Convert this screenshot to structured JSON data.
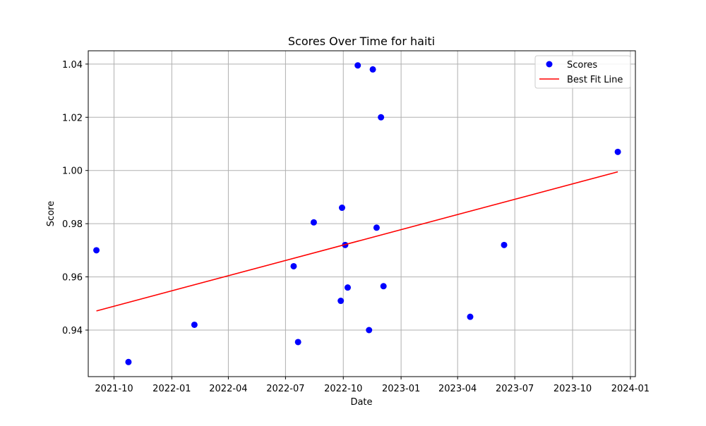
{
  "chart_data": {
    "type": "scatter",
    "title": "Scores Over Time for haiti",
    "xlabel": "Date",
    "ylabel": "Score",
    "xlim": [
      "2021-08-21",
      "2024-01-09"
    ],
    "ylim": [
      0.9225,
      1.045
    ],
    "grid": true,
    "legend_position": "top-right",
    "x_ticks": [
      "2021-10-01",
      "2022-01-01",
      "2022-04-01",
      "2022-07-01",
      "2022-10-01",
      "2023-01-01",
      "2023-04-01",
      "2023-07-01",
      "2023-10-01",
      "2024-01-01"
    ],
    "x_tick_labels": [
      "2021-10",
      "2022-01",
      "2022-04",
      "2022-07",
      "2022-10",
      "2023-01",
      "2023-04",
      "2023-07",
      "2023-10",
      "2024-01"
    ],
    "y_ticks": [
      0.94,
      0.96,
      0.98,
      1.0,
      1.02,
      1.04
    ],
    "y_tick_labels": [
      "0.94",
      "0.96",
      "0.98",
      "1.00",
      "1.02",
      "1.04"
    ],
    "series": [
      {
        "name": "Scores",
        "kind": "scatter",
        "color": "#0000ff",
        "points": [
          {
            "x": "2021-09-03",
            "y": 0.97
          },
          {
            "x": "2021-10-24",
            "y": 0.928
          },
          {
            "x": "2022-02-06",
            "y": 0.942
          },
          {
            "x": "2022-07-14",
            "y": 0.964
          },
          {
            "x": "2022-07-21",
            "y": 0.9355
          },
          {
            "x": "2022-08-15",
            "y": 0.9805
          },
          {
            "x": "2022-09-27",
            "y": 0.951
          },
          {
            "x": "2022-09-29",
            "y": 0.986
          },
          {
            "x": "2022-10-04",
            "y": 0.972
          },
          {
            "x": "2022-10-08",
            "y": 0.956
          },
          {
            "x": "2022-10-24",
            "y": 1.0395
          },
          {
            "x": "2022-11-11",
            "y": 0.94
          },
          {
            "x": "2022-11-17",
            "y": 1.038
          },
          {
            "x": "2022-11-23",
            "y": 0.9785
          },
          {
            "x": "2022-11-30",
            "y": 1.02
          },
          {
            "x": "2022-12-04",
            "y": 0.9565
          },
          {
            "x": "2023-04-21",
            "y": 0.945
          },
          {
            "x": "2023-06-14",
            "y": 0.972
          },
          {
            "x": "2023-12-12",
            "y": 1.007
          }
        ]
      },
      {
        "name": "Best Fit Line",
        "kind": "line",
        "color": "#ff0000",
        "points": [
          {
            "x": "2021-09-03",
            "y": 0.9472
          },
          {
            "x": "2023-12-12",
            "y": 0.9995
          }
        ]
      }
    ]
  }
}
